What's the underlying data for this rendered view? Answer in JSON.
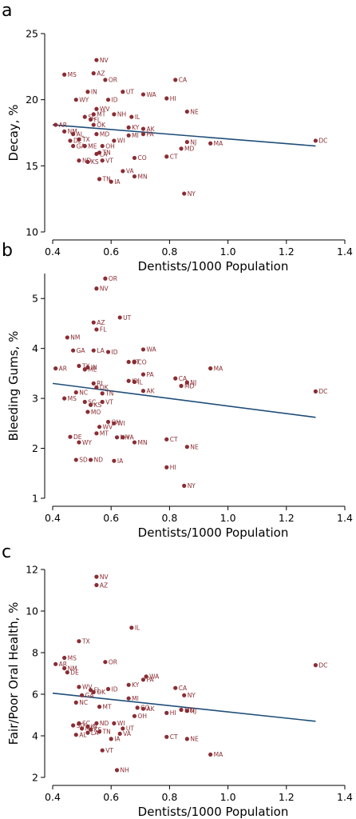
{
  "chart_data": [
    {
      "panel": "a",
      "type": "scatter",
      "xlabel": "Dentists/1000 Population",
      "ylabel": "Decay, %",
      "xlim": [
        0.4,
        1.4
      ],
      "ylim": [
        10,
        25
      ],
      "xticks": [
        "0.4",
        "0.6",
        "0.8",
        "1.0",
        "1.2",
        "1.4"
      ],
      "yticks": [
        "10",
        "15",
        "20",
        "25"
      ],
      "yticks_values": [
        10,
        15,
        20,
        25
      ],
      "colors": {
        "points": "#8a2d33",
        "trendline": "#1f4e79"
      },
      "trendline": [
        [
          0.4,
          18.1
        ],
        [
          1.3,
          16.5
        ]
      ],
      "points": [
        {
          "label": "NV",
          "x": 0.55,
          "y": 23.0
        },
        {
          "label": "MS",
          "x": 0.44,
          "y": 21.9
        },
        {
          "label": "AZ",
          "x": 0.54,
          "y": 22.0
        },
        {
          "label": "OR",
          "x": 0.58,
          "y": 21.5
        },
        {
          "label": "CA",
          "x": 0.82,
          "y": 21.5
        },
        {
          "label": "IN",
          "x": 0.52,
          "y": 20.6
        },
        {
          "label": "UT",
          "x": 0.64,
          "y": 20.6
        },
        {
          "label": "WA",
          "x": 0.71,
          "y": 20.4
        },
        {
          "label": "WY",
          "x": 0.48,
          "y": 20.0
        },
        {
          "label": "ID",
          "x": 0.59,
          "y": 20.0
        },
        {
          "label": "HI",
          "x": 0.79,
          "y": 20.1
        },
        {
          "label": "WV",
          "x": 0.55,
          "y": 19.3
        },
        {
          "label": "NE",
          "x": 0.86,
          "y": 19.1
        },
        {
          "label": "MT",
          "x": 0.54,
          "y": 18.9
        },
        {
          "label": "NH",
          "x": 0.61,
          "y": 18.9
        },
        {
          "label": "IL",
          "x": 0.67,
          "y": 18.7
        },
        {
          "label": "SC",
          "x": 0.51,
          "y": 18.7
        },
        {
          "label": "FL",
          "x": 0.53,
          "y": 18.5
        },
        {
          "label": "OK",
          "x": 0.54,
          "y": 18.1
        },
        {
          "label": "AR",
          "x": 0.41,
          "y": 18.1
        },
        {
          "label": "KY",
          "x": 0.66,
          "y": 17.9
        },
        {
          "label": "AK",
          "x": 0.71,
          "y": 17.8
        },
        {
          "label": "NM",
          "x": 0.44,
          "y": 17.6
        },
        {
          "label": "AL",
          "x": 0.47,
          "y": 17.4
        },
        {
          "label": "MD",
          "x": 0.55,
          "y": 17.4
        },
        {
          "label": "PA",
          "x": 0.71,
          "y": 17.4
        },
        {
          "label": "MI",
          "x": 0.66,
          "y": 17.3
        },
        {
          "label": "TX",
          "x": 0.49,
          "y": 17.0
        },
        {
          "label": "WI",
          "x": 0.61,
          "y": 16.9
        },
        {
          "label": "NJ",
          "x": 0.86,
          "y": 16.8
        },
        {
          "label": "MA",
          "x": 0.94,
          "y": 16.7
        },
        {
          "label": "DC",
          "x": 1.3,
          "y": 16.9
        },
        {
          "label": "DE",
          "x": 0.46,
          "y": 16.9
        },
        {
          "label": "GA",
          "x": 0.47,
          "y": 16.5
        },
        {
          "label": "ME",
          "x": 0.51,
          "y": 16.5
        },
        {
          "label": "OH",
          "x": 0.57,
          "y": 16.5
        },
        {
          "label": "MD",
          "x": 0.84,
          "y": 16.3
        },
        {
          "label": "TN",
          "x": 0.56,
          "y": 16.0
        },
        {
          "label": "LA",
          "x": 0.55,
          "y": 15.9
        },
        {
          "label": "ND",
          "x": 0.49,
          "y": 15.4
        },
        {
          "label": "KS",
          "x": 0.52,
          "y": 15.3
        },
        {
          "label": "VT",
          "x": 0.57,
          "y": 15.4
        },
        {
          "label": "CO",
          "x": 0.68,
          "y": 15.6
        },
        {
          "label": "CT",
          "x": 0.79,
          "y": 15.7
        },
        {
          "label": "VA",
          "x": 0.64,
          "y": 14.6
        },
        {
          "label": "MN",
          "x": 0.68,
          "y": 14.2
        },
        {
          "label": "TN",
          "x": 0.56,
          "y": 14.0
        },
        {
          "label": "IA",
          "x": 0.6,
          "y": 13.8
        },
        {
          "label": "NY",
          "x": 0.85,
          "y": 12.9
        }
      ]
    },
    {
      "panel": "b",
      "type": "scatter",
      "xlabel": "Dentists/1000 Population",
      "ylabel": "Bleeding Gums, %",
      "xlim": [
        0.4,
        1.4
      ],
      "ylim": [
        1,
        5.5
      ],
      "xticks": [
        "0.4",
        "0.6",
        "0.8",
        "1.0",
        "1.2",
        "1.4"
      ],
      "yticks": [
        "1",
        "2",
        "3",
        "4",
        "5"
      ],
      "yticks_values": [
        1,
        2,
        3,
        4,
        5
      ],
      "colors": {
        "points": "#8a2d33",
        "trendline": "#1f4e79"
      },
      "trendline": [
        [
          0.4,
          3.3
        ],
        [
          1.3,
          2.62
        ]
      ],
      "points": [
        {
          "label": "OR",
          "x": 0.58,
          "y": 5.4
        },
        {
          "label": "NV",
          "x": 0.55,
          "y": 5.2
        },
        {
          "label": "UT",
          "x": 0.63,
          "y": 4.62
        },
        {
          "label": "AZ",
          "x": 0.54,
          "y": 4.52
        },
        {
          "label": "FL",
          "x": 0.55,
          "y": 4.38
        },
        {
          "label": "NM",
          "x": 0.45,
          "y": 4.22
        },
        {
          "label": "WA",
          "x": 0.71,
          "y": 3.98
        },
        {
          "label": "GA",
          "x": 0.47,
          "y": 3.96
        },
        {
          "label": "LA",
          "x": 0.54,
          "y": 3.96
        },
        {
          "label": "ID",
          "x": 0.59,
          "y": 3.93
        },
        {
          "label": "CO",
          "x": 0.68,
          "y": 3.73
        },
        {
          "label": "CT",
          "x": 0.66,
          "y": 3.73
        },
        {
          "label": "TX",
          "x": 0.49,
          "y": 3.65
        },
        {
          "label": "IN",
          "x": 0.52,
          "y": 3.62
        },
        {
          "label": "AR",
          "x": 0.41,
          "y": 3.6
        },
        {
          "label": "MA",
          "x": 0.94,
          "y": 3.6
        },
        {
          "label": "ME",
          "x": 0.51,
          "y": 3.58
        },
        {
          "label": "PA",
          "x": 0.71,
          "y": 3.48
        },
        {
          "label": "CA",
          "x": 0.82,
          "y": 3.4
        },
        {
          "label": "KY",
          "x": 0.66,
          "y": 3.35
        },
        {
          "label": "NJ",
          "x": 0.86,
          "y": 3.32
        },
        {
          "label": "IL",
          "x": 0.68,
          "y": 3.33
        },
        {
          "label": "RI",
          "x": 0.54,
          "y": 3.3
        },
        {
          "label": "MD",
          "x": 0.84,
          "y": 3.25
        },
        {
          "label": "OK",
          "x": 0.55,
          "y": 3.22
        },
        {
          "label": "AK",
          "x": 0.71,
          "y": 3.15
        },
        {
          "label": "DC",
          "x": 1.3,
          "y": 3.14
        },
        {
          "label": "NC",
          "x": 0.48,
          "y": 3.12
        },
        {
          "label": "TN",
          "x": 0.57,
          "y": 3.1
        },
        {
          "label": "MS",
          "x": 0.44,
          "y": 3.0
        },
        {
          "label": "SC",
          "x": 0.51,
          "y": 2.93
        },
        {
          "label": "VT",
          "x": 0.57,
          "y": 2.93
        },
        {
          "label": "KS",
          "x": 0.53,
          "y": 2.87
        },
        {
          "label": "MO",
          "x": 0.52,
          "y": 2.73
        },
        {
          "label": "OH",
          "x": 0.59,
          "y": 2.53
        },
        {
          "label": "WI",
          "x": 0.61,
          "y": 2.5
        },
        {
          "label": "WV",
          "x": 0.56,
          "y": 2.43
        },
        {
          "label": "MT",
          "x": 0.55,
          "y": 2.3
        },
        {
          "label": "DE",
          "x": 0.46,
          "y": 2.23
        },
        {
          "label": "NH",
          "x": 0.62,
          "y": 2.22
        },
        {
          "label": "VA",
          "x": 0.64,
          "y": 2.22
        },
        {
          "label": "CT",
          "x": 0.79,
          "y": 2.18
        },
        {
          "label": "WY",
          "x": 0.49,
          "y": 2.12
        },
        {
          "label": "MN",
          "x": 0.68,
          "y": 2.12
        },
        {
          "label": "NE",
          "x": 0.86,
          "y": 2.03
        },
        {
          "label": "SD",
          "x": 0.48,
          "y": 1.77
        },
        {
          "label": "ND",
          "x": 0.53,
          "y": 1.77
        },
        {
          "label": "IA",
          "x": 0.61,
          "y": 1.75
        },
        {
          "label": "HI",
          "x": 0.79,
          "y": 1.62
        },
        {
          "label": "NY",
          "x": 0.85,
          "y": 1.25
        }
      ]
    },
    {
      "panel": "c",
      "type": "scatter",
      "xlabel": "Dentists/1000 Population",
      "ylabel": "Fair/Poor Oral Health, %",
      "xlim": [
        0.4,
        1.4
      ],
      "ylim": [
        2,
        12
      ],
      "xticks": [
        "0.4",
        "0.6",
        "0.8",
        "1.0",
        "1.2",
        "1.4"
      ],
      "yticks": [
        "2",
        "4",
        "6",
        "8",
        "10",
        "12"
      ],
      "yticks_values": [
        2,
        4,
        6,
        8,
        10,
        12
      ],
      "colors": {
        "points": "#8a2d33",
        "trendline": "#1f4e79"
      },
      "trendline": [
        [
          0.4,
          6.05
        ],
        [
          1.3,
          4.7
        ]
      ],
      "points": [
        {
          "label": "NV",
          "x": 0.55,
          "y": 11.65
        },
        {
          "label": "AZ",
          "x": 0.55,
          "y": 11.25
        },
        {
          "label": "IL",
          "x": 0.67,
          "y": 9.2
        },
        {
          "label": "TX",
          "x": 0.49,
          "y": 8.55
        },
        {
          "label": "MS",
          "x": 0.44,
          "y": 7.75
        },
        {
          "label": "OR",
          "x": 0.58,
          "y": 7.55
        },
        {
          "label": "AR",
          "x": 0.41,
          "y": 7.45
        },
        {
          "label": "DC",
          "x": 1.3,
          "y": 7.4
        },
        {
          "label": "NM",
          "x": 0.44,
          "y": 7.25
        },
        {
          "label": "DE",
          "x": 0.45,
          "y": 7.05
        },
        {
          "label": "WA",
          "x": 0.72,
          "y": 6.85
        },
        {
          "label": "PA",
          "x": 0.71,
          "y": 6.7
        },
        {
          "label": "KY",
          "x": 0.66,
          "y": 6.45
        },
        {
          "label": "WV",
          "x": 0.49,
          "y": 6.35
        },
        {
          "label": "CA",
          "x": 0.82,
          "y": 6.3
        },
        {
          "label": "ID",
          "x": 0.59,
          "y": 6.25
        },
        {
          "label": "FL",
          "x": 0.53,
          "y": 6.2
        },
        {
          "label": "OK",
          "x": 0.54,
          "y": 6.1
        },
        {
          "label": "NY",
          "x": 0.85,
          "y": 5.95
        },
        {
          "label": "GA",
          "x": 0.5,
          "y": 5.95
        },
        {
          "label": "MI",
          "x": 0.66,
          "y": 5.8
        },
        {
          "label": "NC",
          "x": 0.48,
          "y": 5.6
        },
        {
          "label": "MT",
          "x": 0.56,
          "y": 5.4
        },
        {
          "label": "CO",
          "x": 0.69,
          "y": 5.35
        },
        {
          "label": "AK",
          "x": 0.71,
          "y": 5.3
        },
        {
          "label": "NJ",
          "x": 0.86,
          "y": 5.2
        },
        {
          "label": "MD",
          "x": 0.84,
          "y": 5.25
        },
        {
          "label": "HI",
          "x": 0.79,
          "y": 5.1
        },
        {
          "label": "OH",
          "x": 0.68,
          "y": 4.95
        },
        {
          "label": "WI",
          "x": 0.61,
          "y": 4.6
        },
        {
          "label": "SC",
          "x": 0.49,
          "y": 4.6
        },
        {
          "label": "SD",
          "x": 0.47,
          "y": 4.5
        },
        {
          "label": "ND",
          "x": 0.55,
          "y": 4.6
        },
        {
          "label": "UT",
          "x": 0.64,
          "y": 4.35
        },
        {
          "label": "IN",
          "x": 0.52,
          "y": 4.45
        },
        {
          "label": "KS",
          "x": 0.53,
          "y": 4.3
        },
        {
          "label": "ME",
          "x": 0.5,
          "y": 4.35
        },
        {
          "label": "TN",
          "x": 0.56,
          "y": 4.2
        },
        {
          "label": "VA",
          "x": 0.63,
          "y": 4.1
        },
        {
          "label": "LA",
          "x": 0.52,
          "y": 4.15
        },
        {
          "label": "AL",
          "x": 0.48,
          "y": 4.05
        },
        {
          "label": "IA",
          "x": 0.6,
          "y": 3.85
        },
        {
          "label": "CT",
          "x": 0.79,
          "y": 3.95
        },
        {
          "label": "NE",
          "x": 0.86,
          "y": 3.85
        },
        {
          "label": "VT",
          "x": 0.57,
          "y": 3.3
        },
        {
          "label": "MA",
          "x": 0.94,
          "y": 3.1
        },
        {
          "label": "NH",
          "x": 0.62,
          "y": 2.35
        }
      ]
    }
  ]
}
